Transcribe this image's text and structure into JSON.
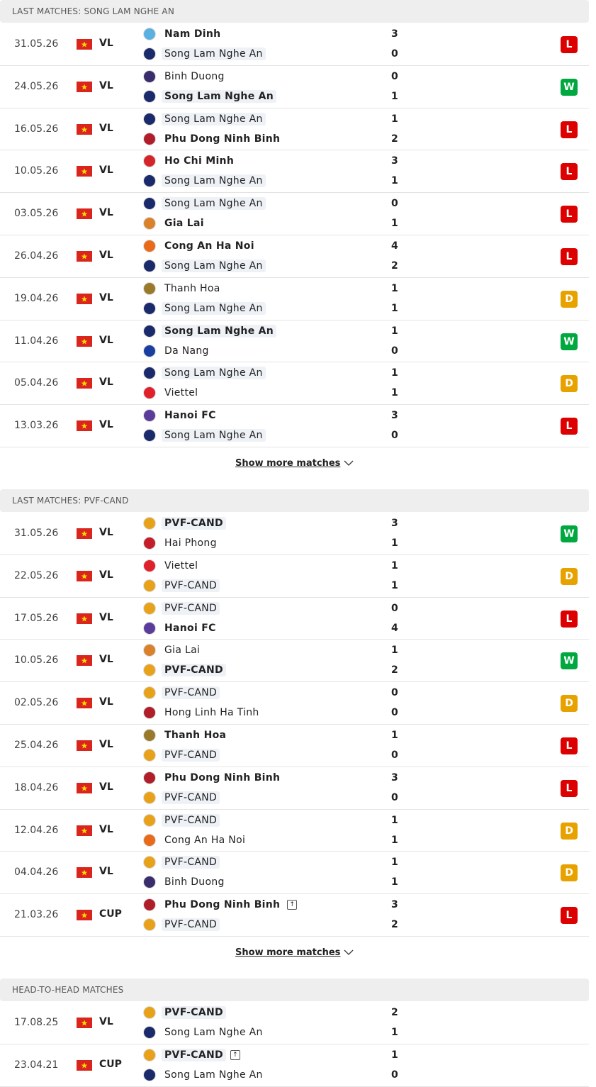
{
  "result_colors": {
    "L": "#dc0000",
    "W": "#00a83f",
    "D": "#e8a200"
  },
  "sections": [
    {
      "title": "LAST MATCHES: SONG LAM NGHE AN",
      "more": "Show more matches",
      "matches": [
        {
          "date": "31.05.26",
          "league": "VL",
          "home": {
            "name": "Nam Dinh",
            "score": 3,
            "bold": true,
            "highlight": false,
            "color": "#5ab0e0"
          },
          "away": {
            "name": "Song Lam Nghe An",
            "score": 0,
            "bold": false,
            "highlight": true,
            "color": "#1b2a6b"
          },
          "result": "L"
        },
        {
          "date": "24.05.26",
          "league": "VL",
          "home": {
            "name": "Binh Duong",
            "score": 0,
            "bold": false,
            "highlight": false,
            "color": "#3a2d6b"
          },
          "away": {
            "name": "Song Lam Nghe An",
            "score": 1,
            "bold": true,
            "highlight": true,
            "color": "#1b2a6b"
          },
          "result": "W"
        },
        {
          "date": "16.05.26",
          "league": "VL",
          "home": {
            "name": "Song Lam Nghe An",
            "score": 1,
            "bold": false,
            "highlight": true,
            "color": "#1b2a6b"
          },
          "away": {
            "name": "Phu Dong Ninh Binh",
            "score": 2,
            "bold": true,
            "highlight": false,
            "color": "#b01e2a"
          },
          "result": "L"
        },
        {
          "date": "10.05.26",
          "league": "VL",
          "home": {
            "name": "Ho Chi Minh",
            "score": 3,
            "bold": true,
            "highlight": false,
            "color": "#d6242b"
          },
          "away": {
            "name": "Song Lam Nghe An",
            "score": 1,
            "bold": false,
            "highlight": true,
            "color": "#1b2a6b"
          },
          "result": "L"
        },
        {
          "date": "03.05.26",
          "league": "VL",
          "home": {
            "name": "Song Lam Nghe An",
            "score": 0,
            "bold": false,
            "highlight": true,
            "color": "#1b2a6b"
          },
          "away": {
            "name": "Gia Lai",
            "score": 1,
            "bold": true,
            "highlight": false,
            "color": "#d9822b"
          },
          "result": "L"
        },
        {
          "date": "26.04.26",
          "league": "VL",
          "home": {
            "name": "Cong An Ha Noi",
            "score": 4,
            "bold": true,
            "highlight": false,
            "color": "#e86a1a"
          },
          "away": {
            "name": "Song Lam Nghe An",
            "score": 2,
            "bold": false,
            "highlight": true,
            "color": "#1b2a6b"
          },
          "result": "L"
        },
        {
          "date": "19.04.26",
          "league": "VL",
          "home": {
            "name": "Thanh Hoa",
            "score": 1,
            "bold": false,
            "highlight": false,
            "color": "#9a7a2a"
          },
          "away": {
            "name": "Song Lam Nghe An",
            "score": 1,
            "bold": false,
            "highlight": true,
            "color": "#1b2a6b"
          },
          "result": "D"
        },
        {
          "date": "11.04.26",
          "league": "VL",
          "home": {
            "name": "Song Lam Nghe An",
            "score": 1,
            "bold": true,
            "highlight": true,
            "color": "#1b2a6b"
          },
          "away": {
            "name": "Da Nang",
            "score": 0,
            "bold": false,
            "highlight": false,
            "color": "#1b3fa0"
          },
          "result": "W"
        },
        {
          "date": "05.04.26",
          "league": "VL",
          "home": {
            "name": "Song Lam Nghe An",
            "score": 1,
            "bold": false,
            "highlight": true,
            "color": "#1b2a6b"
          },
          "away": {
            "name": "Viettel",
            "score": 1,
            "bold": false,
            "highlight": false,
            "color": "#e0202a"
          },
          "result": "D"
        },
        {
          "date": "13.03.26",
          "league": "VL",
          "home": {
            "name": "Hanoi FC",
            "score": 3,
            "bold": true,
            "highlight": false,
            "color": "#5a3d9a"
          },
          "away": {
            "name": "Song Lam Nghe An",
            "score": 0,
            "bold": false,
            "highlight": true,
            "color": "#1b2a6b"
          },
          "result": "L"
        }
      ]
    },
    {
      "title": "LAST MATCHES: PVF-CAND",
      "more": "Show more matches",
      "matches": [
        {
          "date": "31.05.26",
          "league": "VL",
          "home": {
            "name": "PVF-CAND",
            "score": 3,
            "bold": true,
            "highlight": true,
            "color": "#e8a21a"
          },
          "away": {
            "name": "Hai Phong",
            "score": 1,
            "bold": false,
            "highlight": false,
            "color": "#c41e2a"
          },
          "result": "W"
        },
        {
          "date": "22.05.26",
          "league": "VL",
          "home": {
            "name": "Viettel",
            "score": 1,
            "bold": false,
            "highlight": false,
            "color": "#e0202a"
          },
          "away": {
            "name": "PVF-CAND",
            "score": 1,
            "bold": false,
            "highlight": true,
            "color": "#e8a21a"
          },
          "result": "D"
        },
        {
          "date": "17.05.26",
          "league": "VL",
          "home": {
            "name": "PVF-CAND",
            "score": 0,
            "bold": false,
            "highlight": true,
            "color": "#e8a21a"
          },
          "away": {
            "name": "Hanoi FC",
            "score": 4,
            "bold": true,
            "highlight": false,
            "color": "#5a3d9a"
          },
          "result": "L"
        },
        {
          "date": "10.05.26",
          "league": "VL",
          "home": {
            "name": "Gia Lai",
            "score": 1,
            "bold": false,
            "highlight": false,
            "color": "#d9822b"
          },
          "away": {
            "name": "PVF-CAND",
            "score": 2,
            "bold": true,
            "highlight": true,
            "color": "#e8a21a"
          },
          "result": "W"
        },
        {
          "date": "02.05.26",
          "league": "VL",
          "home": {
            "name": "PVF-CAND",
            "score": 0,
            "bold": false,
            "highlight": true,
            "color": "#e8a21a"
          },
          "away": {
            "name": "Hong Linh Ha Tinh",
            "score": 0,
            "bold": false,
            "highlight": false,
            "color": "#b01e2a"
          },
          "result": "D"
        },
        {
          "date": "25.04.26",
          "league": "VL",
          "home": {
            "name": "Thanh Hoa",
            "score": 1,
            "bold": true,
            "highlight": false,
            "color": "#9a7a2a"
          },
          "away": {
            "name": "PVF-CAND",
            "score": 0,
            "bold": false,
            "highlight": true,
            "color": "#e8a21a"
          },
          "result": "L"
        },
        {
          "date": "18.04.26",
          "league": "VL",
          "home": {
            "name": "Phu Dong Ninh Binh",
            "score": 3,
            "bold": true,
            "highlight": false,
            "color": "#b01e2a"
          },
          "away": {
            "name": "PVF-CAND",
            "score": 0,
            "bold": false,
            "highlight": true,
            "color": "#e8a21a"
          },
          "result": "L"
        },
        {
          "date": "12.04.26",
          "league": "VL",
          "home": {
            "name": "PVF-CAND",
            "score": 1,
            "bold": false,
            "highlight": true,
            "color": "#e8a21a"
          },
          "away": {
            "name": "Cong An Ha Noi",
            "score": 1,
            "bold": false,
            "highlight": false,
            "color": "#e86a1a"
          },
          "result": "D"
        },
        {
          "date": "04.04.26",
          "league": "VL",
          "home": {
            "name": "PVF-CAND",
            "score": 1,
            "bold": false,
            "highlight": true,
            "color": "#e8a21a"
          },
          "away": {
            "name": "Binh Duong",
            "score": 1,
            "bold": false,
            "highlight": false,
            "color": "#3a2d6b"
          },
          "result": "D"
        },
        {
          "date": "21.03.26",
          "league": "CUP",
          "home": {
            "name": "Phu Dong Ninh Binh",
            "score": 3,
            "bold": true,
            "highlight": false,
            "icon": true,
            "color": "#b01e2a"
          },
          "away": {
            "name": "PVF-CAND",
            "score": 2,
            "bold": false,
            "highlight": true,
            "color": "#e8a21a"
          },
          "result": "L"
        }
      ]
    },
    {
      "title": "HEAD-TO-HEAD MATCHES",
      "matches": [
        {
          "date": "17.08.25",
          "league": "VL",
          "home": {
            "name": "PVF-CAND",
            "score": 2,
            "bold": true,
            "highlight": true,
            "color": "#e8a21a"
          },
          "away": {
            "name": "Song Lam Nghe An",
            "score": 1,
            "bold": false,
            "highlight": false,
            "color": "#1b2a6b"
          }
        },
        {
          "date": "23.04.21",
          "league": "CUP",
          "home": {
            "name": "PVF-CAND",
            "score": 1,
            "bold": true,
            "highlight": true,
            "icon": true,
            "color": "#e8a21a"
          },
          "away": {
            "name": "Song Lam Nghe An",
            "score": 0,
            "bold": false,
            "highlight": false,
            "color": "#1b2a6b"
          }
        }
      ]
    }
  ]
}
